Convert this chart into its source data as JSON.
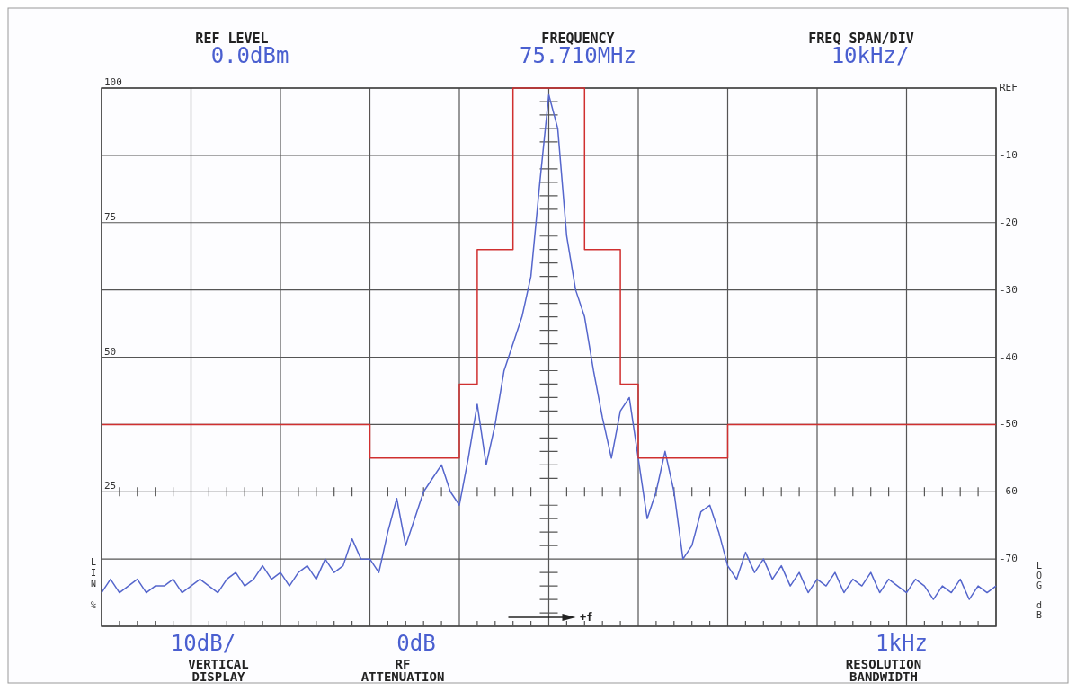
{
  "chart_data": {
    "type": "line",
    "xlabel": null,
    "ylabel": "LIN %",
    "y2label": "LOG dB",
    "categories": [
      null,
      null,
      null,
      null,
      null,
      null,
      null,
      null,
      null,
      null,
      null,
      null,
      null,
      null,
      null,
      null,
      null,
      null,
      null,
      null,
      null,
      null,
      null,
      null,
      null,
      null,
      null,
      null,
      null,
      null,
      null,
      null,
      null,
      null,
      null,
      null,
      null,
      null,
      null,
      null,
      null,
      null,
      null,
      null,
      null,
      null,
      null,
      null,
      null,
      null,
      null,
      null,
      null,
      null,
      null,
      null,
      null,
      null,
      null,
      null,
      null,
      null,
      null,
      null,
      null,
      null,
      null,
      null,
      null,
      null,
      null,
      null,
      null,
      null,
      null,
      null,
      null,
      null,
      null,
      null,
      null,
      null,
      null,
      null,
      null,
      null,
      null,
      null,
      null,
      null,
      null,
      null,
      null,
      null,
      null,
      null,
      null,
      null,
      null,
      null,
      null
    ],
    "ylim": [
      0,
      100
    ],
    "yticks": [
      25,
      50,
      75,
      100
    ],
    "y2lim": [
      -80,
      0
    ],
    "y2ticks": [
      {
        "value": 0,
        "label": "REF"
      },
      -10,
      -20,
      -30,
      -40,
      -50,
      -60,
      -70
    ],
    "grid": true,
    "legend": false,
    "tick_labels": "y",
    "series": [
      {
        "type": "line",
        "axis": "y2",
        "color": "#5566cc",
        "values": [
          -75,
          -73,
          -75,
          -74,
          -73,
          -75,
          -74,
          -74,
          -73,
          -75,
          -74,
          -73,
          -74,
          -75,
          -73,
          -72,
          -74,
          -73,
          -71,
          -73,
          -72,
          -74,
          -72,
          -71,
          -73,
          -70,
          -72,
          -71,
          -67,
          -70,
          -70,
          -72,
          -66,
          -61,
          -68,
          -64,
          -60,
          -58,
          -56,
          -60,
          -62,
          -55,
          -47,
          -56,
          -50,
          -42,
          -38,
          -34,
          -28,
          -14,
          -1,
          -6,
          -22,
          -30,
          -34,
          -42,
          -49,
          -55,
          -48,
          -46,
          -55,
          -64,
          -60,
          -54,
          -60,
          -70,
          -68,
          -63,
          -62,
          -66,
          -71,
          -73,
          -69,
          -72,
          -70,
          -73,
          -71,
          -74,
          -72,
          -75,
          -73,
          -74,
          -72,
          -75,
          -73,
          -74,
          -72,
          -75,
          -73,
          -74,
          -75,
          -73,
          -74,
          -76,
          -74,
          -75,
          -73,
          -76,
          -74,
          -75,
          -74
        ]
      },
      {
        "type": "step",
        "axis": "y2",
        "color": "#d03030",
        "values": [
          -50,
          -50,
          -50,
          -50,
          -50,
          -50,
          -50,
          -50,
          -50,
          -50,
          -50,
          -50,
          -50,
          -50,
          -50,
          -50,
          -50,
          -50,
          -50,
          -50,
          -50,
          -50,
          -50,
          -50,
          -50,
          -50,
          -50,
          -50,
          -50,
          -50,
          -55,
          -55,
          -55,
          -55,
          -55,
          -55,
          -55,
          -55,
          -55,
          -55,
          -44,
          -44,
          -24,
          -24,
          -24,
          -24,
          0,
          0,
          0,
          0,
          0,
          0,
          0,
          0,
          -24,
          -24,
          -24,
          -24,
          -44,
          -44,
          -55,
          -55,
          -55,
          -55,
          -55,
          -55,
          -55,
          -55,
          -55,
          -55,
          -50,
          -50,
          -50,
          -50,
          -50,
          -50,
          -50,
          -50,
          -50,
          -50,
          -50,
          -50,
          -50,
          -50,
          -50,
          -50,
          -50,
          -50,
          -50,
          -50,
          -50,
          -50,
          -50,
          -50,
          -50,
          -50,
          -50,
          -50,
          -50,
          -50,
          -50
        ]
      }
    ],
    "annotations": [
      "REF LEVEL",
      "0.0dBm",
      "FREQUENCY",
      "75.710MHz",
      "FREQ SPAN/DIV",
      "10kHz/",
      "10dB/",
      "VERTICAL DISPLAY",
      "0dB",
      "RF ATTENUATION",
      "1kHz",
      "RESOLUTION BANDWIDTH",
      "+f"
    ]
  }
}
